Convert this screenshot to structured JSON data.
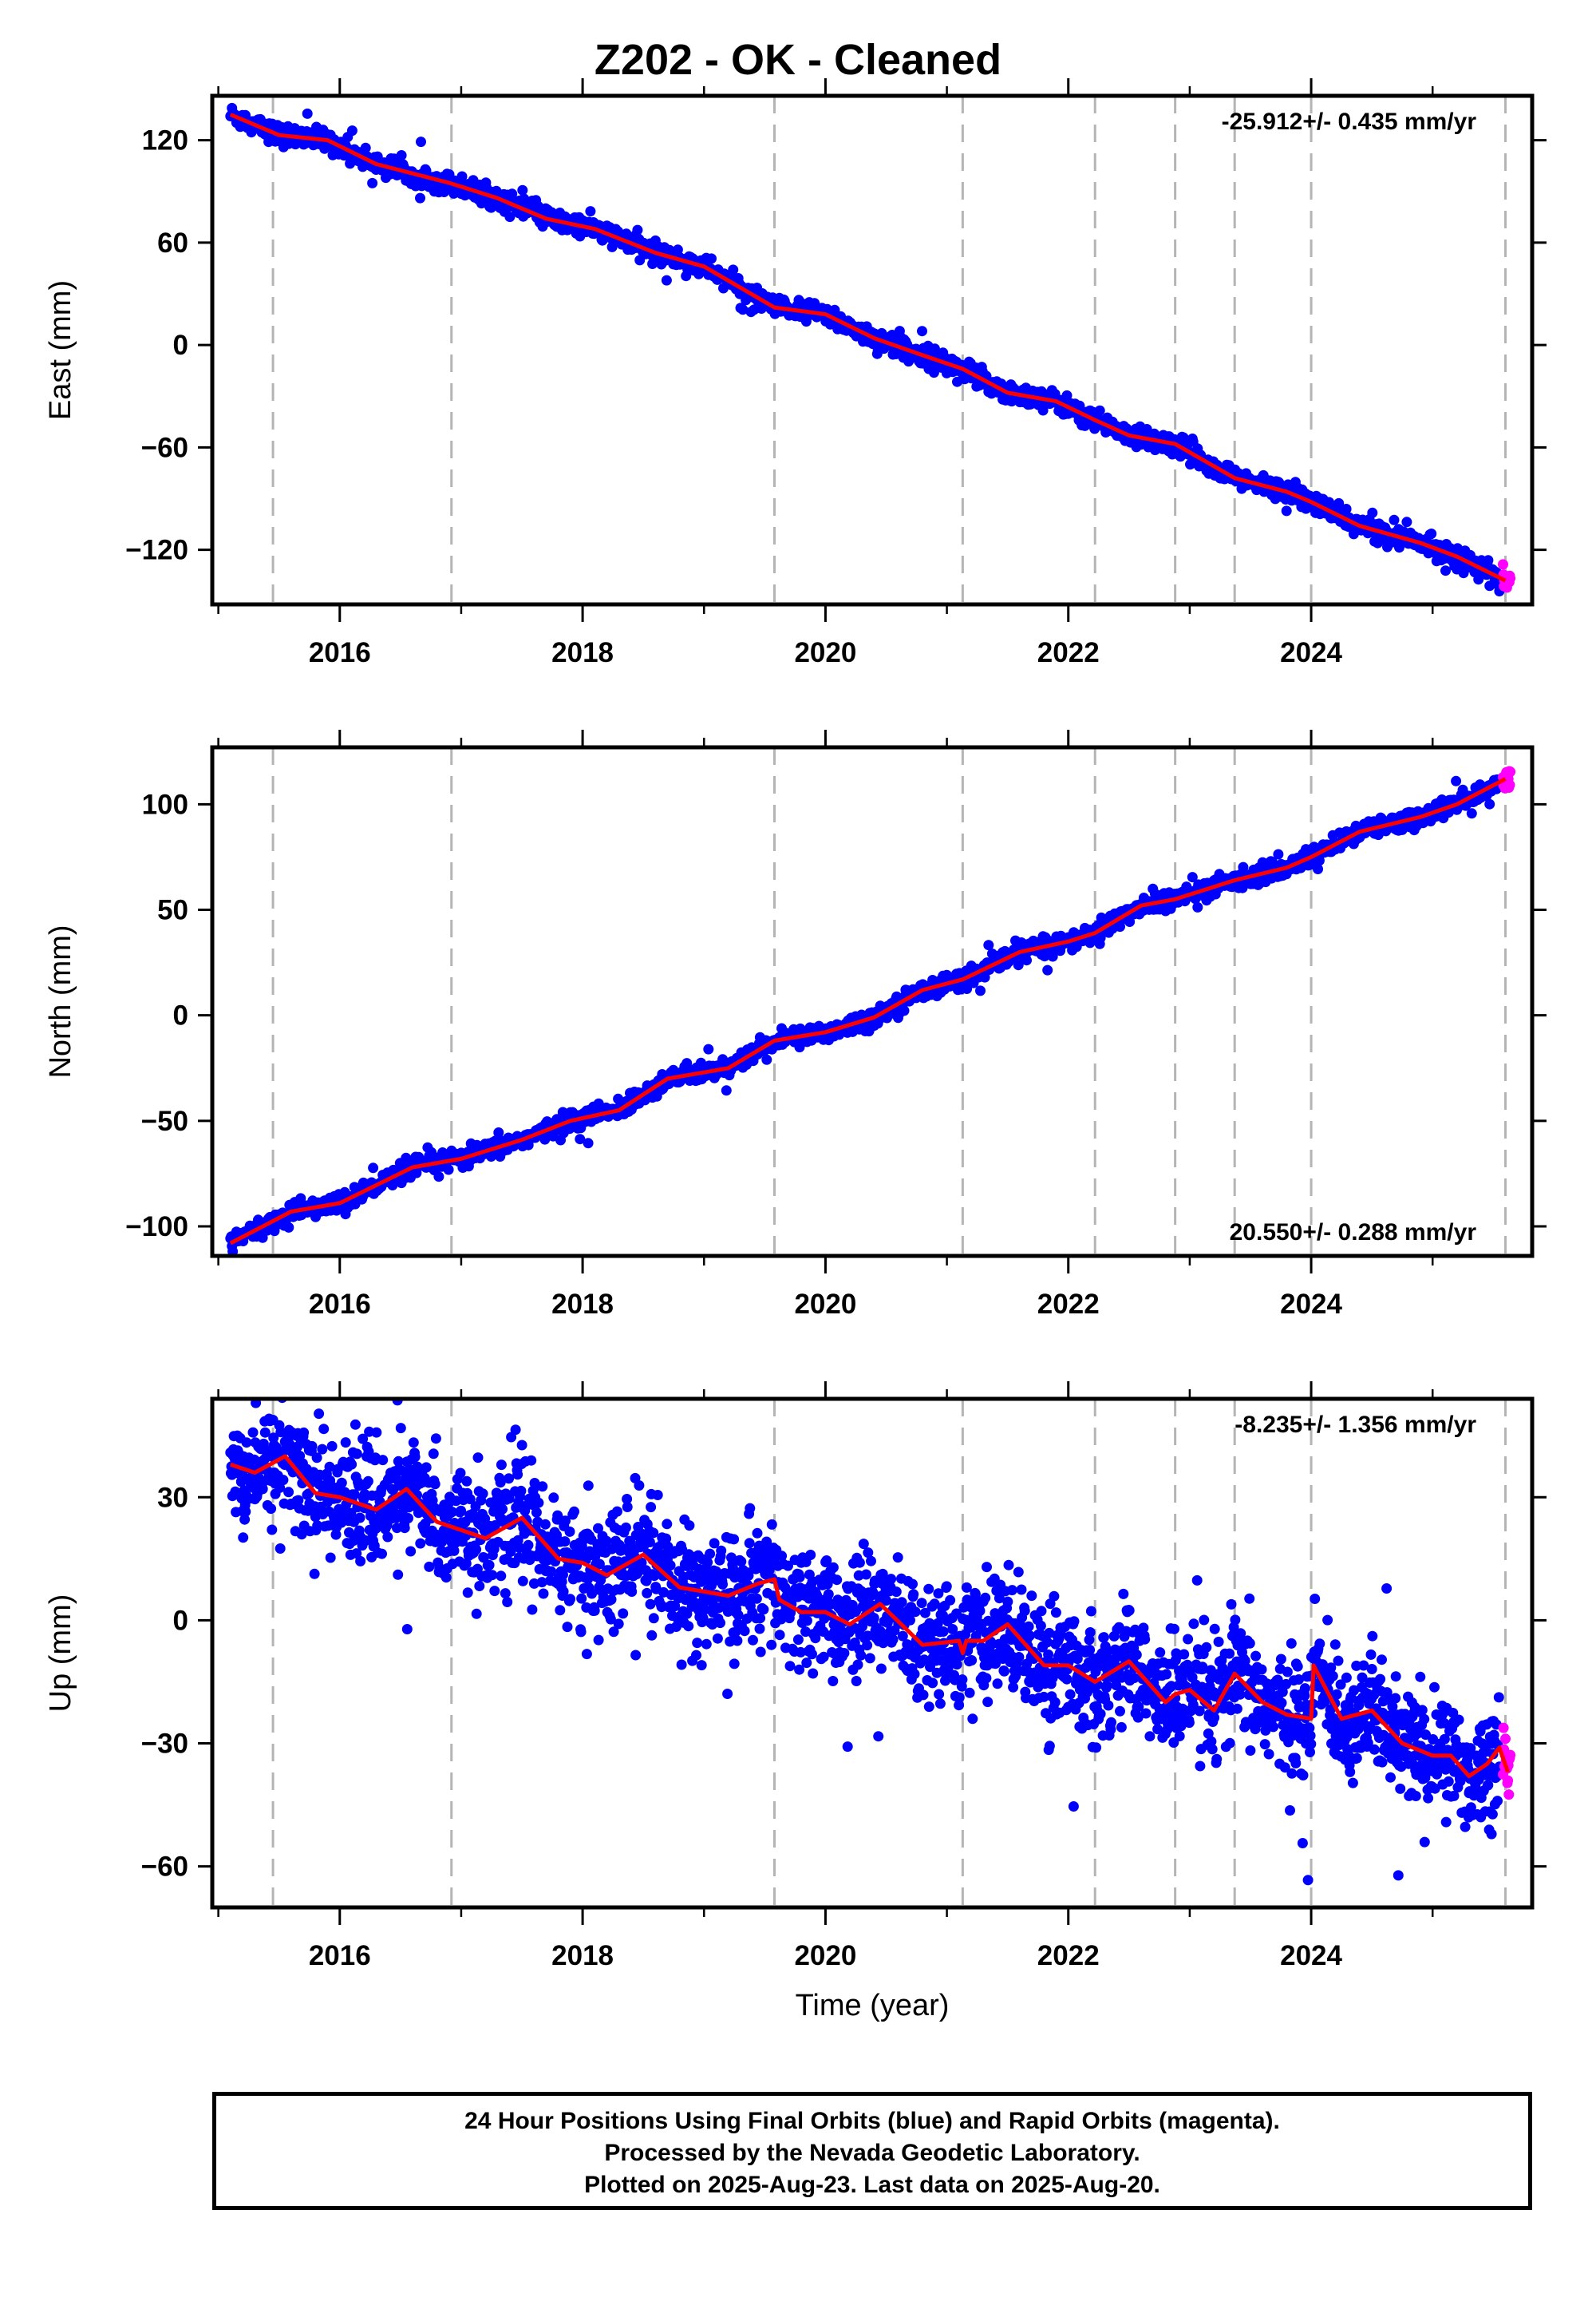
{
  "title": "Z202  - OK - Cleaned",
  "colors": {
    "final": "#0000ff",
    "rapid": "#ff00ff",
    "model": "#ff0000",
    "breaks": "#b4b4b4"
  },
  "footer": {
    "line1": "24 Hour Positions Using Final Orbits (blue) and Rapid Orbits (magenta).",
    "line2": "Processed by the Nevada Geodetic Laboratory.",
    "line3": "Plotted on 2025-Aug-23. Last data on 2025-Aug-20."
  },
  "chart_data": [
    {
      "type": "scatter",
      "ylabel": "East (mm)",
      "xlabel": "",
      "rate_text": "-25.912+/- 0.435 mm/yr",
      "rate_position": "top-right",
      "xlim": [
        2014.95,
        2025.82
      ],
      "ylim": [
        -152,
        146
      ],
      "xticks": [
        2016,
        2018,
        2020,
        2022,
        2024
      ],
      "yticks": [
        120,
        60,
        0,
        -60,
        -120
      ],
      "break_years": [
        2015.45,
        2016.92,
        2019.58,
        2021.13,
        2022.22,
        2022.88,
        2023.37,
        2024.0,
        2025.6
      ],
      "rate": -25.912,
      "model_points": [
        [
          2015.1,
          135
        ],
        [
          2015.5,
          123
        ],
        [
          2015.9,
          120
        ],
        [
          2016.3,
          106
        ],
        [
          2016.9,
          95
        ],
        [
          2017.3,
          86
        ],
        [
          2017.7,
          74
        ],
        [
          2018.1,
          68
        ],
        [
          2018.6,
          54
        ],
        [
          2019.0,
          46
        ],
        [
          2019.58,
          22
        ],
        [
          2020.0,
          18
        ],
        [
          2020.4,
          4
        ],
        [
          2020.8,
          -6
        ],
        [
          2021.13,
          -14
        ],
        [
          2021.5,
          -28
        ],
        [
          2021.9,
          -33
        ],
        [
          2022.22,
          -44
        ],
        [
          2022.5,
          -53
        ],
        [
          2022.88,
          -58
        ],
        [
          2023.37,
          -78
        ],
        [
          2023.8,
          -86
        ],
        [
          2024.0,
          -92
        ],
        [
          2024.4,
          -106
        ],
        [
          2024.9,
          -116
        ],
        [
          2025.2,
          -124
        ],
        [
          2025.6,
          -138
        ]
      ],
      "series": [
        {
          "name": "Final Orbits",
          "noise": 3.0,
          "x_range": [
            2015.1,
            2025.55
          ],
          "count": 1700
        },
        {
          "name": "Rapid Orbits",
          "noise": 3.0,
          "x_range": [
            2025.58,
            2025.64
          ],
          "count": 16
        }
      ]
    },
    {
      "type": "scatter",
      "ylabel": "North (mm)",
      "xlabel": "",
      "rate_text": "20.550+/- 0.288 mm/yr",
      "rate_position": "bottom-right",
      "xlim": [
        2014.95,
        2025.82
      ],
      "ylim": [
        -114,
        127
      ],
      "xticks": [
        2016,
        2018,
        2020,
        2022,
        2024
      ],
      "yticks": [
        100,
        50,
        0,
        -50,
        -100
      ],
      "break_years": [
        2015.45,
        2016.92,
        2019.58,
        2021.13,
        2022.22,
        2022.88,
        2023.37,
        2024.0,
        2025.6
      ],
      "rate": 20.55,
      "model_points": [
        [
          2015.1,
          -108
        ],
        [
          2015.6,
          -93
        ],
        [
          2016.0,
          -89
        ],
        [
          2016.6,
          -72
        ],
        [
          2017.0,
          -68
        ],
        [
          2017.5,
          -59
        ],
        [
          2017.9,
          -50
        ],
        [
          2018.3,
          -45
        ],
        [
          2018.7,
          -30
        ],
        [
          2019.2,
          -25
        ],
        [
          2019.58,
          -12
        ],
        [
          2020.0,
          -8
        ],
        [
          2020.4,
          -1
        ],
        [
          2020.8,
          12
        ],
        [
          2021.13,
          17
        ],
        [
          2021.6,
          30
        ],
        [
          2022.0,
          35
        ],
        [
          2022.22,
          39
        ],
        [
          2022.6,
          52
        ],
        [
          2022.88,
          55
        ],
        [
          2023.37,
          64
        ],
        [
          2023.8,
          70
        ],
        [
          2024.0,
          75
        ],
        [
          2024.4,
          87
        ],
        [
          2024.9,
          94
        ],
        [
          2025.2,
          100
        ],
        [
          2025.6,
          112
        ]
      ],
      "series": [
        {
          "name": "Final Orbits",
          "noise": 2.2,
          "x_range": [
            2015.1,
            2025.55
          ],
          "count": 1700
        },
        {
          "name": "Rapid Orbits",
          "noise": 2.2,
          "x_range": [
            2025.58,
            2025.64
          ],
          "count": 16
        }
      ]
    },
    {
      "type": "scatter",
      "ylabel": "Up (mm)",
      "xlabel": "Time (year)",
      "rate_text": "-8.235+/- 1.356 mm/yr",
      "rate_position": "top-right",
      "xlim": [
        2014.95,
        2025.82
      ],
      "ylim": [
        -70,
        54
      ],
      "xticks": [
        2016,
        2018,
        2020,
        2022,
        2024
      ],
      "yticks": [
        30,
        0,
        -30,
        -60
      ],
      "break_years": [
        2015.45,
        2016.92,
        2019.58,
        2021.13,
        2022.22,
        2022.88,
        2023.37,
        2024.0,
        2025.6
      ],
      "rate": -8.235,
      "model_points": [
        [
          2015.1,
          38
        ],
        [
          2015.3,
          36
        ],
        [
          2015.55,
          40
        ],
        [
          2015.8,
          31
        ],
        [
          2016.0,
          30
        ],
        [
          2016.3,
          27
        ],
        [
          2016.55,
          32
        ],
        [
          2016.8,
          24
        ],
        [
          2017.0,
          22
        ],
        [
          2017.2,
          20
        ],
        [
          2017.5,
          25
        ],
        [
          2017.8,
          15
        ],
        [
          2018.0,
          14
        ],
        [
          2018.2,
          11
        ],
        [
          2018.5,
          16
        ],
        [
          2018.8,
          8
        ],
        [
          2019.0,
          7
        ],
        [
          2019.2,
          6
        ],
        [
          2019.45,
          9
        ],
        [
          2019.58,
          10
        ],
        [
          2019.62,
          5
        ],
        [
          2019.8,
          2
        ],
        [
          2020.0,
          2
        ],
        [
          2020.2,
          -1
        ],
        [
          2020.45,
          4
        ],
        [
          2020.8,
          -6
        ],
        [
          2021.1,
          -5
        ],
        [
          2021.13,
          -8
        ],
        [
          2021.16,
          -5
        ],
        [
          2021.3,
          -5
        ],
        [
          2021.5,
          -1
        ],
        [
          2021.8,
          -11
        ],
        [
          2022.0,
          -11
        ],
        [
          2022.22,
          -15
        ],
        [
          2022.5,
          -10
        ],
        [
          2022.8,
          -20
        ],
        [
          2022.88,
          -18
        ],
        [
          2023.0,
          -17
        ],
        [
          2023.2,
          -22
        ],
        [
          2023.37,
          -13
        ],
        [
          2023.6,
          -20
        ],
        [
          2023.8,
          -23
        ],
        [
          2024.0,
          -24
        ],
        [
          2024.02,
          -11
        ],
        [
          2024.25,
          -24
        ],
        [
          2024.5,
          -22
        ],
        [
          2024.75,
          -30
        ],
        [
          2025.0,
          -33
        ],
        [
          2025.15,
          -33
        ],
        [
          2025.3,
          -38
        ],
        [
          2025.45,
          -35
        ],
        [
          2025.55,
          -31
        ],
        [
          2025.62,
          -37
        ]
      ],
      "series": [
        {
          "name": "Final Orbits",
          "noise": 7.0,
          "x_range": [
            2015.1,
            2025.55
          ],
          "count": 2600
        },
        {
          "name": "Rapid Orbits",
          "noise": 4.0,
          "x_range": [
            2025.58,
            2025.64
          ],
          "count": 16
        }
      ]
    }
  ]
}
